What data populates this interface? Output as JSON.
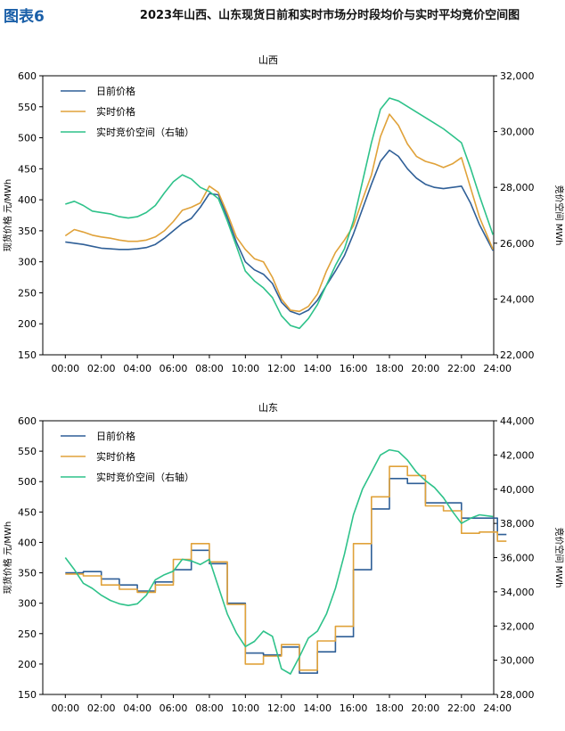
{
  "figure": {
    "label": "图表6",
    "title": "2023年山西、山东现货日前和实时市场分时段均价与实时平均竞价空间图"
  },
  "colors": {
    "day_ahead": "#2f5f97",
    "real_time": "#e0a23a",
    "space": "#2ec28a"
  },
  "chart_data": [
    {
      "type": "line",
      "title": "山西",
      "ylabel": "现货价格 元/MWh",
      "y2label": "竞价空间 MWh",
      "xlabel": "",
      "ylim": [
        150,
        600
      ],
      "y2lim": [
        22000,
        32000
      ],
      "xlim": [
        0,
        24
      ],
      "yticks": [
        "150",
        "200",
        "250",
        "300",
        "350",
        "400",
        "450",
        "500",
        "550",
        "600"
      ],
      "y2ticks": [
        "22,000",
        "24,000",
        "26,000",
        "28,000",
        "30,000",
        "32,000"
      ],
      "xticks": [
        "00:00",
        "02:00",
        "04:00",
        "06:00",
        "08:00",
        "10:00",
        "12:00",
        "14:00",
        "16:00",
        "18:00",
        "20:00",
        "22:00",
        "24:00"
      ],
      "legend": "top-left",
      "grid": false,
      "series": [
        {
          "name": "日前价格",
          "axis": "left",
          "x": [
            0,
            0.5,
            1,
            1.5,
            2,
            2.5,
            3,
            3.5,
            4,
            4.5,
            5,
            5.5,
            6,
            6.5,
            7,
            7.5,
            8,
            8.5,
            9,
            9.5,
            10,
            10.5,
            11,
            11.5,
            12,
            12.5,
            13,
            13.5,
            14,
            14.5,
            15,
            15.5,
            16,
            16.5,
            17,
            17.5,
            18,
            18.5,
            19,
            19.5,
            20,
            20.5,
            21,
            21.5,
            22,
            22.5,
            23,
            23.75
          ],
          "y": [
            332,
            330,
            328,
            325,
            322,
            321,
            320,
            320,
            321,
            323,
            328,
            338,
            350,
            362,
            370,
            388,
            410,
            408,
            372,
            332,
            300,
            287,
            280,
            265,
            235,
            220,
            215,
            222,
            238,
            262,
            285,
            310,
            345,
            385,
            425,
            462,
            480,
            470,
            450,
            435,
            425,
            420,
            418,
            420,
            422,
            395,
            360,
            318
          ]
        },
        {
          "name": "实时价格",
          "axis": "left",
          "x": [
            0,
            0.5,
            1,
            1.5,
            2,
            2.5,
            3,
            3.5,
            4,
            4.5,
            5,
            5.5,
            6,
            6.5,
            7,
            7.5,
            8,
            8.5,
            9,
            9.5,
            10,
            10.5,
            11,
            11.5,
            12,
            12.5,
            13,
            13.5,
            14,
            14.5,
            15,
            15.5,
            16,
            16.5,
            17,
            17.5,
            18,
            18.5,
            19,
            19.5,
            20,
            20.5,
            21,
            21.5,
            22,
            22.5,
            23,
            23.75
          ],
          "y": [
            342,
            352,
            348,
            343,
            340,
            338,
            335,
            333,
            333,
            335,
            340,
            350,
            365,
            383,
            388,
            395,
            422,
            412,
            378,
            340,
            320,
            305,
            300,
            275,
            240,
            222,
            220,
            228,
            248,
            285,
            315,
            335,
            358,
            400,
            440,
            502,
            538,
            520,
            490,
            470,
            462,
            458,
            452,
            458,
            468,
            420,
            372,
            320
          ]
        },
        {
          "name": "实时竞价空间（右轴）",
          "axis": "right",
          "x": [
            0,
            0.5,
            1,
            1.5,
            2,
            2.5,
            3,
            3.5,
            4,
            4.5,
            5,
            5.5,
            6,
            6.5,
            7,
            7.5,
            8,
            8.5,
            9,
            9.5,
            10,
            10.5,
            11,
            11.5,
            12,
            12.5,
            13,
            13.5,
            14,
            14.5,
            15,
            15.5,
            16,
            16.5,
            17,
            17.5,
            18,
            18.5,
            19,
            19.5,
            20,
            20.5,
            21,
            21.5,
            22,
            22.5,
            23,
            23.75
          ],
          "y": [
            27400,
            27500,
            27350,
            27150,
            27100,
            27050,
            26950,
            26900,
            26950,
            27100,
            27350,
            27800,
            28200,
            28450,
            28300,
            28000,
            27850,
            27600,
            26800,
            25900,
            25000,
            24650,
            24400,
            24050,
            23400,
            23050,
            22950,
            23300,
            23800,
            24500,
            25200,
            25800,
            26800,
            28200,
            29600,
            30800,
            31200,
            31100,
            30900,
            30700,
            30500,
            30300,
            30100,
            29850,
            29600,
            28700,
            27700,
            26300
          ]
        }
      ]
    },
    {
      "type": "line",
      "title": "山东",
      "ylabel": "现货价格 元/MWh",
      "y2label": "竞价空间 MWh",
      "xlabel": "",
      "ylim": [
        150,
        600
      ],
      "y2lim": [
        28000,
        44000
      ],
      "xlim": [
        0,
        24
      ],
      "yticks": [
        "150",
        "200",
        "250",
        "300",
        "350",
        "400",
        "450",
        "500",
        "550",
        "600"
      ],
      "y2ticks": [
        "28,000",
        "30,000",
        "32,000",
        "34,000",
        "36,000",
        "38,000",
        "40,000",
        "42,000",
        "44,000"
      ],
      "xticks": [
        "00:00",
        "02:00",
        "04:00",
        "06:00",
        "08:00",
        "10:00",
        "12:00",
        "14:00",
        "16:00",
        "18:00",
        "20:00",
        "22:00",
        "24:00"
      ],
      "legend": "top-left",
      "grid": false,
      "series": [
        {
          "name": "日前价格",
          "axis": "left",
          "step": true,
          "x": [
            0,
            1,
            2,
            3,
            4,
            5,
            6,
            7,
            8,
            9,
            10,
            11,
            12,
            13,
            14,
            15,
            16,
            17,
            18,
            19,
            20,
            21,
            22,
            23,
            24
          ],
          "y": [
            350,
            352,
            340,
            330,
            320,
            335,
            355,
            387,
            365,
            300,
            218,
            215,
            228,
            185,
            220,
            245,
            355,
            455,
            505,
            497,
            465,
            465,
            440,
            440,
            413
          ]
        },
        {
          "name": "实时价格",
          "axis": "left",
          "step": true,
          "x": [
            0,
            1,
            2,
            3,
            4,
            5,
            6,
            7,
            8,
            9,
            10,
            11,
            12,
            13,
            14,
            15,
            16,
            17,
            18,
            19,
            20,
            21,
            22,
            23,
            24
          ],
          "y": [
            348,
            345,
            330,
            323,
            318,
            330,
            372,
            398,
            368,
            298,
            200,
            213,
            232,
            190,
            238,
            262,
            398,
            475,
            525,
            510,
            460,
            452,
            415,
            417,
            402
          ]
        },
        {
          "name": "实时竞价空间（右轴）",
          "axis": "right",
          "x": [
            0,
            0.5,
            1,
            1.5,
            2,
            2.5,
            3,
            3.5,
            4,
            4.5,
            5,
            5.5,
            6,
            6.5,
            7,
            7.5,
            8,
            8.5,
            9,
            9.5,
            10,
            10.5,
            11,
            11.5,
            12,
            12.5,
            13,
            13.5,
            14,
            14.5,
            15,
            15.5,
            16,
            16.5,
            17,
            17.5,
            18,
            18.5,
            19,
            19.5,
            20,
            20.5,
            21,
            21.5,
            22,
            22.5,
            23,
            23.75
          ],
          "y": [
            36000,
            35300,
            34500,
            34200,
            33800,
            33500,
            33300,
            33200,
            33300,
            33800,
            34700,
            35000,
            35200,
            35900,
            35800,
            35600,
            35900,
            34300,
            32700,
            31600,
            30800,
            31100,
            31700,
            31400,
            29500,
            29200,
            30200,
            31300,
            31700,
            32700,
            34200,
            36200,
            38500,
            40000,
            41000,
            42000,
            42300,
            42200,
            41700,
            41000,
            40500,
            40100,
            39500,
            38700,
            38000,
            38300,
            38500,
            38400
          ]
        }
      ]
    }
  ]
}
